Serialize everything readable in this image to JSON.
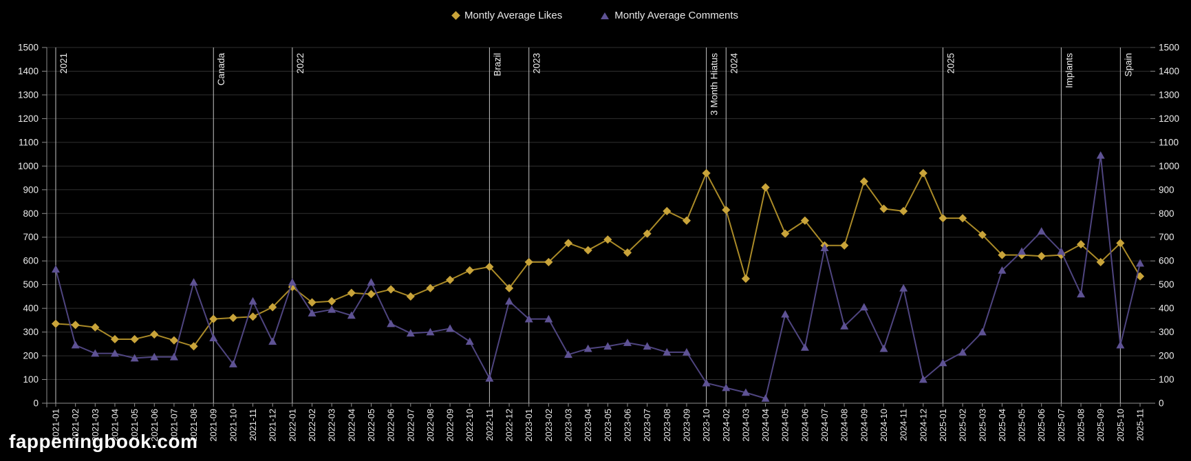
{
  "page": {
    "background": "#000000"
  },
  "legend": {
    "items": [
      {
        "label": "Montly Average Likes",
        "marker": "diamond-icon",
        "color": "#c9a43a"
      },
      {
        "label": "Montly Average Comments",
        "marker": "triangle-icon",
        "color": "#5e5294"
      }
    ]
  },
  "watermark": {
    "text": "fappeningbook.com"
  },
  "colors": {
    "background": "#000000",
    "grid": "#303030",
    "axis": "#8f8f8f",
    "annotation_line": "#c6c6c6",
    "tick_text": "#ededed",
    "likes_line": "#ab8b28",
    "likes_marker": "#c9a43a",
    "comments_line": "#4f4580",
    "comments_marker": "#5e5294"
  },
  "chart_data": {
    "type": "line",
    "title": "",
    "xlabel": "",
    "ylabel": "",
    "ylim": [
      0,
      1500
    ],
    "y_tick_step": 100,
    "y_axis_sides": [
      "left",
      "right"
    ],
    "grid": "horizontal-only",
    "legend_position": "top-center",
    "categories": [
      "2021-01",
      "2021-02",
      "2021-03",
      "2021-04",
      "2021-05",
      "2021-06",
      "2021-07",
      "2021-08",
      "2021-09",
      "2021-10",
      "2021-11",
      "2021-12",
      "2022-01",
      "2022-02",
      "2022-03",
      "2022-04",
      "2022-05",
      "2022-06",
      "2022-07",
      "2022-08",
      "2022-09",
      "2022-10",
      "2022-11",
      "2022-12",
      "2023-01",
      "2023-02",
      "2023-03",
      "2023-04",
      "2023-05",
      "2023-06",
      "2023-07",
      "2023-08",
      "2023-09",
      "2023-10",
      "2024-02",
      "2024-03",
      "2024-04",
      "2024-05",
      "2024-06",
      "2024-07",
      "2024-08",
      "2024-09",
      "2024-10",
      "2024-11",
      "2024-12",
      "2025-01",
      "2025-02",
      "2025-03",
      "2025-04",
      "2025-05",
      "2025-06",
      "2025-07",
      "2025-08",
      "2025-09",
      "2025-10",
      "2025-11"
    ],
    "series": [
      {
        "name": "Montly Average Likes",
        "marker": "diamond",
        "color": "#c9a43a",
        "line_color": "#ab8b28",
        "values": [
          335,
          330,
          320,
          270,
          270,
          290,
          265,
          240,
          355,
          360,
          365,
          405,
          490,
          425,
          430,
          465,
          460,
          480,
          450,
          485,
          520,
          560,
          575,
          485,
          595,
          595,
          675,
          645,
          690,
          635,
          715,
          810,
          770,
          970,
          815,
          525,
          910,
          715,
          770,
          665,
          665,
          935,
          820,
          810,
          970,
          780,
          780,
          710,
          625,
          625,
          620,
          625,
          670,
          595,
          675,
          535
        ]
      },
      {
        "name": "Montly Average Comments",
        "marker": "triangle",
        "color": "#5e5294",
        "line_color": "#4f4580",
        "values": [
          565,
          245,
          210,
          210,
          190,
          195,
          195,
          510,
          275,
          165,
          430,
          260,
          510,
          380,
          395,
          370,
          510,
          335,
          295,
          300,
          315,
          260,
          105,
          430,
          355,
          355,
          205,
          230,
          240,
          255,
          240,
          215,
          215,
          85,
          65,
          45,
          20,
          375,
          235,
          655,
          325,
          405,
          230,
          485,
          100,
          170,
          215,
          300,
          560,
          640,
          725,
          640,
          460,
          1045,
          245,
          590
        ]
      }
    ],
    "annotations": [
      {
        "label": "2021",
        "category": "2021-01"
      },
      {
        "label": "Canada",
        "category": "2021-09"
      },
      {
        "label": "2022",
        "category": "2022-01"
      },
      {
        "label": "Brazil",
        "category": "2022-11"
      },
      {
        "label": "2023",
        "category": "2023-01"
      },
      {
        "label": "3 Month Hiatus",
        "category": "2023-10"
      },
      {
        "label": "2024",
        "category": "2024-02"
      },
      {
        "label": "2025",
        "category": "2025-01"
      },
      {
        "label": "Implants",
        "category": "2025-07"
      },
      {
        "label": "Spain",
        "category": "2025-10"
      }
    ]
  }
}
